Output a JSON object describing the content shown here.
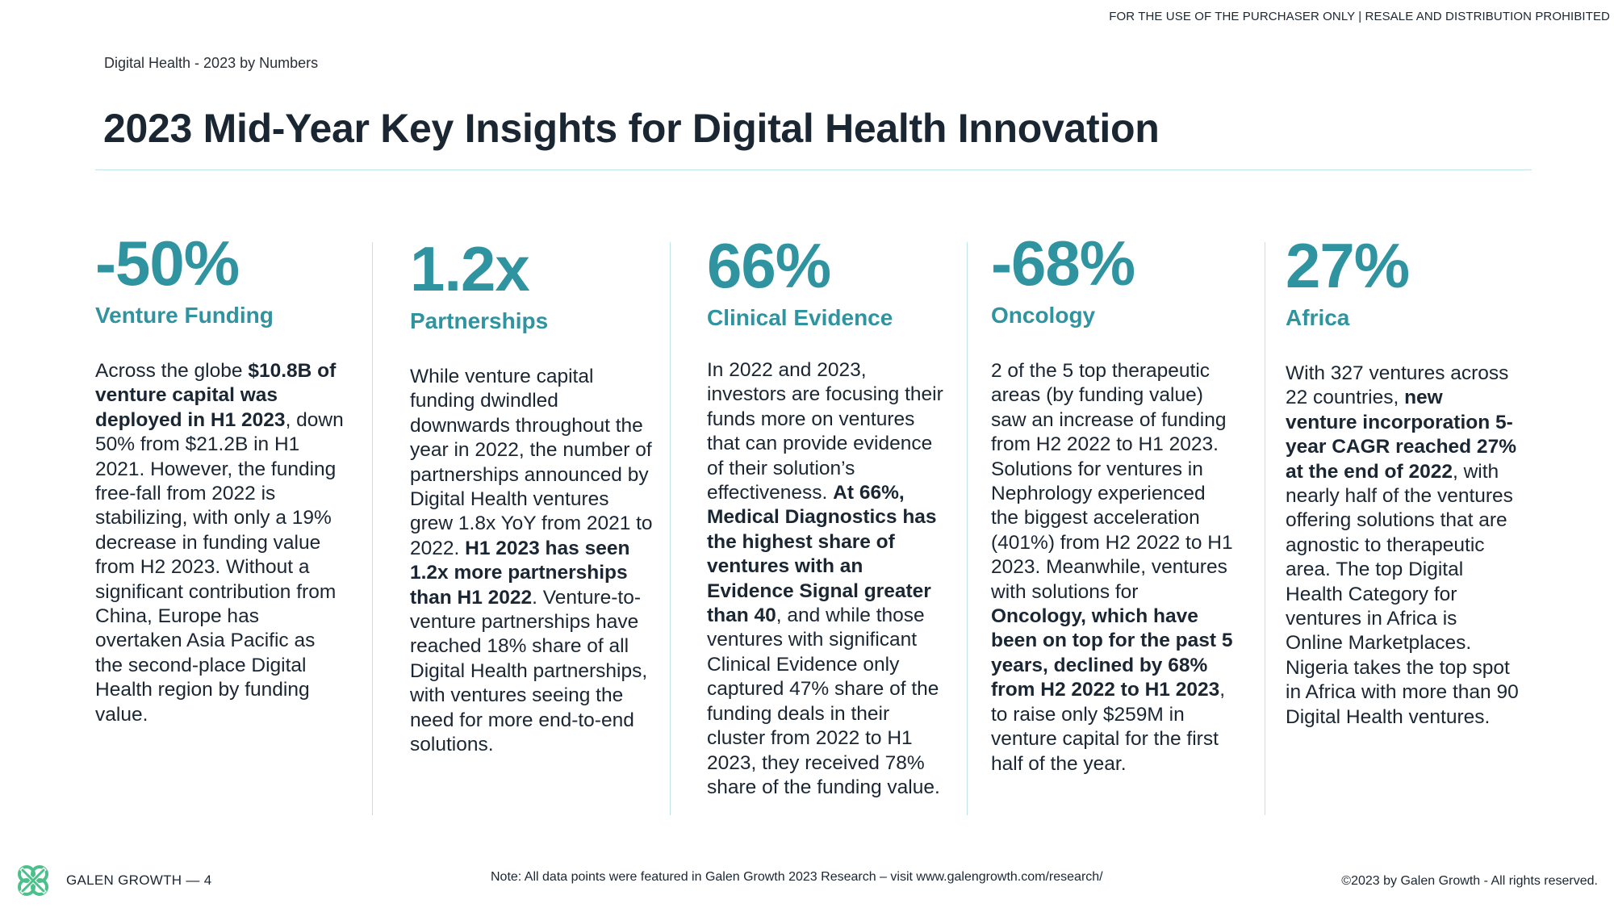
{
  "header": {
    "notice": "FOR THE USE OF THE PURCHASER ONLY | RESALE AND DISTRIBUTION PROHIBITED",
    "breadcrumb": "Digital Health  - 2023 by Numbers",
    "title": "2023 Mid-Year Key Insights for Digital Health Innovation"
  },
  "columns": [
    {
      "stat": "-50%",
      "label": "Venture Funding",
      "body": [
        {
          "t": "Across the globe ",
          "b": false
        },
        {
          "t": "$10.8B of venture capital was deployed in H1 2023",
          "b": true
        },
        {
          "t": ", down 50% from $21.2B in H1 2021. However, the funding free-fall from 2022 is stabilizing, with only a 19% decrease in funding value from H2 2023. Without a significant contribution from China, Europe has overtaken Asia Pacific as the second-place Digital Health region by funding value.",
          "b": false
        }
      ]
    },
    {
      "stat": "1.2x",
      "label": "Partnerships",
      "body": [
        {
          "t": "While venture capital funding dwindled downwards throughout the year in 2022, the number of partnerships announced by Digital Health ventures grew 1.8x YoY from 2021 to 2022. ",
          "b": false
        },
        {
          "t": "H1 2023 has seen 1.2x more partnerships than H1 2022",
          "b": true
        },
        {
          "t": ". Venture-to-venture partnerships have reached 18% share of all Digital Health partnerships, with ventures seeing the need for more end-to-end solutions.",
          "b": false
        }
      ]
    },
    {
      "stat": "66%",
      "label": "Clinical Evidence",
      "body": [
        {
          "t": "In 2022 and 2023, investors are focusing their funds more on ventures that can provide evidence of their solution’s effectiveness. ",
          "b": false
        },
        {
          "t": "At 66%, Medical Diagnostics has the highest share of ventures with an Evidence Signal greater than 40",
          "b": true
        },
        {
          "t": ", and while those ventures with significant Clinical Evidence only captured 47% share of the funding deals in their cluster from 2022 to H1 2023, they received 78% share of the funding value.",
          "b": false
        }
      ]
    },
    {
      "stat": "-68%",
      "label": "Oncology",
      "body": [
        {
          "t": "2 of the 5 top therapeutic areas (by funding value) saw an increase of funding from H2 2022 to H1 2023. Solutions for ventures in Nephrology experienced the biggest acceleration (401%) from H2 2022 to H1 2023. Meanwhile, ventures with solutions for ",
          "b": false
        },
        {
          "t": "Oncology, which have been on top for the past 5 years, declined by 68% from H2 2022 to H1 2023",
          "b": true
        },
        {
          "t": ", to raise only $259M in venture capital for the first half of the year.",
          "b": false
        }
      ]
    },
    {
      "stat": "27%",
      "label": "Africa",
      "body": [
        {
          "t": "With 327 ventures across 22 countries, ",
          "b": false
        },
        {
          "t": "new venture incorporation 5-year CAGR reached 27% at the end of 2022",
          "b": true
        },
        {
          "t": ", with nearly half of the ventures offering solutions that are agnostic to therapeutic area. The top Digital Health Category for ventures in Africa is Online Marketplaces. Nigeria takes the top spot in Africa with more than 90 Digital Health ventures.",
          "b": false
        }
      ]
    }
  ],
  "footer": {
    "brand": "GALEN GROWTH  —  4",
    "note": "Note: All data points were featured in Galen Growth 2023 Research – visit www.galengrowth.com/research/",
    "copyright": "©2023 by Galen Growth  - All rights reserved.",
    "logo_icon": "galen-growth-logo-icon",
    "logo_color": "#4cc08a"
  }
}
